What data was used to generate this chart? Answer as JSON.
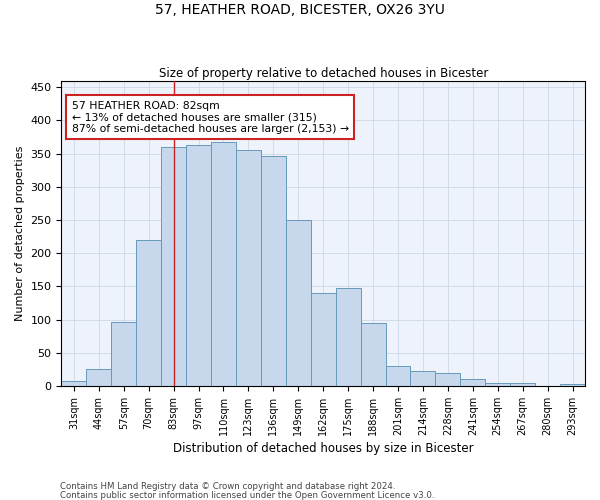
{
  "title1": "57, HEATHER ROAD, BICESTER, OX26 3YU",
  "title2": "Size of property relative to detached houses in Bicester",
  "xlabel": "Distribution of detached houses by size in Bicester",
  "ylabel": "Number of detached properties",
  "categories": [
    "31sqm",
    "44sqm",
    "57sqm",
    "70sqm",
    "83sqm",
    "97sqm",
    "110sqm",
    "123sqm",
    "136sqm",
    "149sqm",
    "162sqm",
    "175sqm",
    "188sqm",
    "201sqm",
    "214sqm",
    "228sqm",
    "241sqm",
    "254sqm",
    "267sqm",
    "280sqm",
    "293sqm"
  ],
  "values": [
    8,
    25,
    97,
    220,
    360,
    363,
    368,
    355,
    347,
    250,
    140,
    148,
    95,
    30,
    22,
    20,
    10,
    4,
    4,
    0,
    3
  ],
  "bar_color": "#c8d8ec",
  "bar_edge_color": "#6699bb",
  "grid_color": "#ccd8e8",
  "background_color": "#eef2fb",
  "annotation_text_line1": "57 HEATHER ROAD: 82sqm",
  "annotation_text_line2": "← 13% of detached houses are smaller (315)",
  "annotation_text_line3": "87% of semi-detached houses are larger (2,153) →",
  "annotation_box_facecolor": "#ffffff",
  "annotation_box_edgecolor": "#cc2222",
  "vline_color": "#cc2222",
  "vline_x": 4,
  "footnote1": "Contains HM Land Registry data © Crown copyright and database right 2024.",
  "footnote2": "Contains public sector information licensed under the Open Government Licence v3.0.",
  "ylim": [
    0,
    460
  ],
  "yticks": [
    0,
    50,
    100,
    150,
    200,
    250,
    300,
    350,
    400,
    450
  ]
}
